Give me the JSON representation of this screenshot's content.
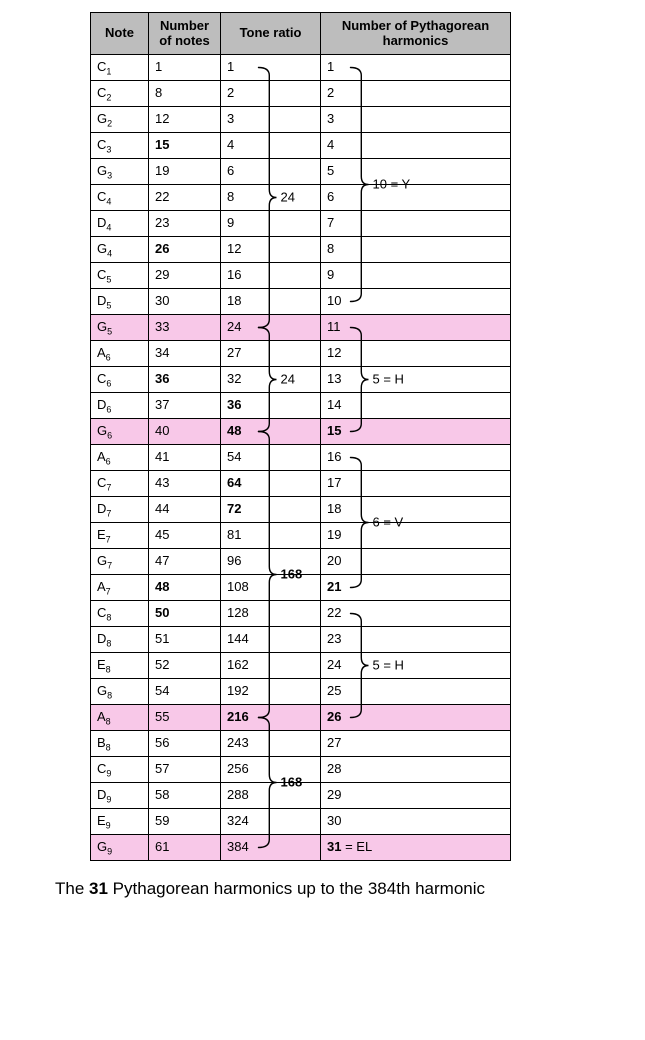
{
  "headers": {
    "note": "Note",
    "num_notes": "Number of notes",
    "tone_ratio": "Tone ratio",
    "num_pyth": "Number of Pythagorean harmonics"
  },
  "colors": {
    "header_bg": "#bdbdbd",
    "highlight_bg": "#f8c8e8",
    "border": "#000000",
    "text": "#000000",
    "bg": "#ffffff"
  },
  "rows": [
    {
      "note_letter": "C",
      "note_sub": "1",
      "num_notes": "1",
      "num_notes_bold": false,
      "ratio": "1",
      "ratio_bold": false,
      "pyth": "1",
      "pyth_bold": false,
      "pyth_suffix": "",
      "hl": false
    },
    {
      "note_letter": "C",
      "note_sub": "2",
      "num_notes": "8",
      "num_notes_bold": false,
      "ratio": "2",
      "ratio_bold": false,
      "pyth": "2",
      "pyth_bold": false,
      "pyth_suffix": "",
      "hl": false
    },
    {
      "note_letter": "G",
      "note_sub": "2",
      "num_notes": "12",
      "num_notes_bold": false,
      "ratio": "3",
      "ratio_bold": false,
      "pyth": "3",
      "pyth_bold": false,
      "pyth_suffix": "",
      "hl": false
    },
    {
      "note_letter": "C",
      "note_sub": "3",
      "num_notes": "15",
      "num_notes_bold": true,
      "ratio": "4",
      "ratio_bold": false,
      "pyth": "4",
      "pyth_bold": false,
      "pyth_suffix": "",
      "hl": false
    },
    {
      "note_letter": "G",
      "note_sub": "3",
      "num_notes": "19",
      "num_notes_bold": false,
      "ratio": "6",
      "ratio_bold": false,
      "pyth": "5",
      "pyth_bold": false,
      "pyth_suffix": "",
      "hl": false
    },
    {
      "note_letter": "C",
      "note_sub": "4",
      "num_notes": "22",
      "num_notes_bold": false,
      "ratio": "8",
      "ratio_bold": false,
      "pyth": "6",
      "pyth_bold": false,
      "pyth_suffix": "",
      "hl": false
    },
    {
      "note_letter": "D",
      "note_sub": "4",
      "num_notes": "23",
      "num_notes_bold": false,
      "ratio": "9",
      "ratio_bold": false,
      "pyth": "7",
      "pyth_bold": false,
      "pyth_suffix": "",
      "hl": false
    },
    {
      "note_letter": "G",
      "note_sub": "4",
      "num_notes": "26",
      "num_notes_bold": true,
      "ratio": "12",
      "ratio_bold": false,
      "pyth": "8",
      "pyth_bold": false,
      "pyth_suffix": "",
      "hl": false
    },
    {
      "note_letter": "C",
      "note_sub": "5",
      "num_notes": "29",
      "num_notes_bold": false,
      "ratio": "16",
      "ratio_bold": false,
      "pyth": "9",
      "pyth_bold": false,
      "pyth_suffix": "",
      "hl": false
    },
    {
      "note_letter": "D",
      "note_sub": "5",
      "num_notes": "30",
      "num_notes_bold": false,
      "ratio": "18",
      "ratio_bold": false,
      "pyth": "10",
      "pyth_bold": false,
      "pyth_suffix": "",
      "hl": false
    },
    {
      "note_letter": "G",
      "note_sub": "5",
      "num_notes": "33",
      "num_notes_bold": false,
      "ratio": "24",
      "ratio_bold": false,
      "pyth": "11",
      "pyth_bold": false,
      "pyth_suffix": "",
      "hl": true
    },
    {
      "note_letter": "A",
      "note_sub": "6",
      "num_notes": "34",
      "num_notes_bold": false,
      "ratio": "27",
      "ratio_bold": false,
      "pyth": "12",
      "pyth_bold": false,
      "pyth_suffix": "",
      "hl": false
    },
    {
      "note_letter": "C",
      "note_sub": "6",
      "num_notes": "36",
      "num_notes_bold": true,
      "ratio": "32",
      "ratio_bold": false,
      "pyth": "13",
      "pyth_bold": false,
      "pyth_suffix": "",
      "hl": false
    },
    {
      "note_letter": "D",
      "note_sub": "6",
      "num_notes": "37",
      "num_notes_bold": false,
      "ratio": "36",
      "ratio_bold": true,
      "pyth": "14",
      "pyth_bold": false,
      "pyth_suffix": "",
      "hl": false
    },
    {
      "note_letter": "G",
      "note_sub": "6",
      "num_notes": "40",
      "num_notes_bold": false,
      "ratio": "48",
      "ratio_bold": true,
      "pyth": "15",
      "pyth_bold": true,
      "pyth_suffix": "",
      "hl": true
    },
    {
      "note_letter": "A",
      "note_sub": "6",
      "num_notes": "41",
      "num_notes_bold": false,
      "ratio": "54",
      "ratio_bold": false,
      "pyth": "16",
      "pyth_bold": false,
      "pyth_suffix": "",
      "hl": false
    },
    {
      "note_letter": "C",
      "note_sub": "7",
      "num_notes": "43",
      "num_notes_bold": false,
      "ratio": "64",
      "ratio_bold": true,
      "pyth": "17",
      "pyth_bold": false,
      "pyth_suffix": "",
      "hl": false
    },
    {
      "note_letter": "D",
      "note_sub": "7",
      "num_notes": "44",
      "num_notes_bold": false,
      "ratio": "72",
      "ratio_bold": true,
      "pyth": "18",
      "pyth_bold": false,
      "pyth_suffix": "",
      "hl": false
    },
    {
      "note_letter": "E",
      "note_sub": "7",
      "num_notes": "45",
      "num_notes_bold": false,
      "ratio": "81",
      "ratio_bold": false,
      "pyth": "19",
      "pyth_bold": false,
      "pyth_suffix": "",
      "hl": false
    },
    {
      "note_letter": "G",
      "note_sub": "7",
      "num_notes": "47",
      "num_notes_bold": false,
      "ratio": "96",
      "ratio_bold": false,
      "pyth": "20",
      "pyth_bold": false,
      "pyth_suffix": "",
      "hl": false
    },
    {
      "note_letter": "A",
      "note_sub": "7",
      "num_notes": "48",
      "num_notes_bold": true,
      "ratio": "108",
      "ratio_bold": false,
      "pyth": "21",
      "pyth_bold": true,
      "pyth_suffix": "",
      "hl": false
    },
    {
      "note_letter": "C",
      "note_sub": "8",
      "num_notes": "50",
      "num_notes_bold": true,
      "ratio": "128",
      "ratio_bold": false,
      "pyth": "22",
      "pyth_bold": false,
      "pyth_suffix": "",
      "hl": false
    },
    {
      "note_letter": "D",
      "note_sub": "8",
      "num_notes": "51",
      "num_notes_bold": false,
      "ratio": "144",
      "ratio_bold": false,
      "pyth": "23",
      "pyth_bold": false,
      "pyth_suffix": "",
      "hl": false
    },
    {
      "note_letter": "E",
      "note_sub": "8",
      "num_notes": "52",
      "num_notes_bold": false,
      "ratio": "162",
      "ratio_bold": false,
      "pyth": "24",
      "pyth_bold": false,
      "pyth_suffix": "",
      "hl": false
    },
    {
      "note_letter": "G",
      "note_sub": "8",
      "num_notes": "54",
      "num_notes_bold": false,
      "ratio": "192",
      "ratio_bold": false,
      "pyth": "25",
      "pyth_bold": false,
      "pyth_suffix": "",
      "hl": false
    },
    {
      "note_letter": "A",
      "note_sub": "8",
      "num_notes": "55",
      "num_notes_bold": false,
      "ratio": "216",
      "ratio_bold": true,
      "pyth": "26",
      "pyth_bold": true,
      "pyth_suffix": "",
      "hl": true
    },
    {
      "note_letter": "B",
      "note_sub": "8",
      "num_notes": "56",
      "num_notes_bold": false,
      "ratio": "243",
      "ratio_bold": false,
      "pyth": "27",
      "pyth_bold": false,
      "pyth_suffix": "",
      "hl": false
    },
    {
      "note_letter": "C",
      "note_sub": "9",
      "num_notes": "57",
      "num_notes_bold": false,
      "ratio": "256",
      "ratio_bold": false,
      "pyth": "28",
      "pyth_bold": false,
      "pyth_suffix": "",
      "hl": false
    },
    {
      "note_letter": "D",
      "note_sub": "9",
      "num_notes": "58",
      "num_notes_bold": false,
      "ratio": "288",
      "ratio_bold": false,
      "pyth": "29",
      "pyth_bold": false,
      "pyth_suffix": "",
      "hl": false
    },
    {
      "note_letter": "E",
      "note_sub": "9",
      "num_notes": "59",
      "num_notes_bold": false,
      "ratio": "324",
      "ratio_bold": false,
      "pyth": "30",
      "pyth_bold": false,
      "pyth_suffix": "",
      "hl": false
    },
    {
      "note_letter": "G",
      "note_sub": "9",
      "num_notes": "61",
      "num_notes_bold": false,
      "ratio": "384",
      "ratio_bold": false,
      "pyth": "31",
      "pyth_bold": true,
      "pyth_suffix": " = EL",
      "hl": true
    }
  ],
  "braces": {
    "ratio": [
      {
        "from_row": 0,
        "to_row": 10,
        "label": "24",
        "label_bold": false,
        "side": "right"
      },
      {
        "from_row": 10,
        "to_row": 14,
        "label": "24",
        "label_bold": false,
        "side": "right"
      },
      {
        "from_row": 14,
        "to_row": 25,
        "label": "168",
        "label_bold": true,
        "side": "right"
      },
      {
        "from_row": 25,
        "to_row": 30,
        "label": "168",
        "label_bold": true,
        "side": "right"
      }
    ],
    "pyth": [
      {
        "from_row": 0,
        "to_row": 9,
        "label": "10 = Y",
        "label_bold": false,
        "side": "right"
      },
      {
        "from_row": 10,
        "to_row": 14,
        "label": "5 = H",
        "label_bold": false,
        "side": "right"
      },
      {
        "from_row": 15,
        "to_row": 20,
        "label": "6 = V",
        "label_bold": false,
        "side": "right"
      },
      {
        "from_row": 21,
        "to_row": 25,
        "label": "5 = H",
        "label_bold": false,
        "side": "right"
      }
    ]
  },
  "caption": {
    "prefix": "The ",
    "bold_number": "31",
    "suffix": " Pythagorean harmonics up to the 384th harmonic"
  }
}
